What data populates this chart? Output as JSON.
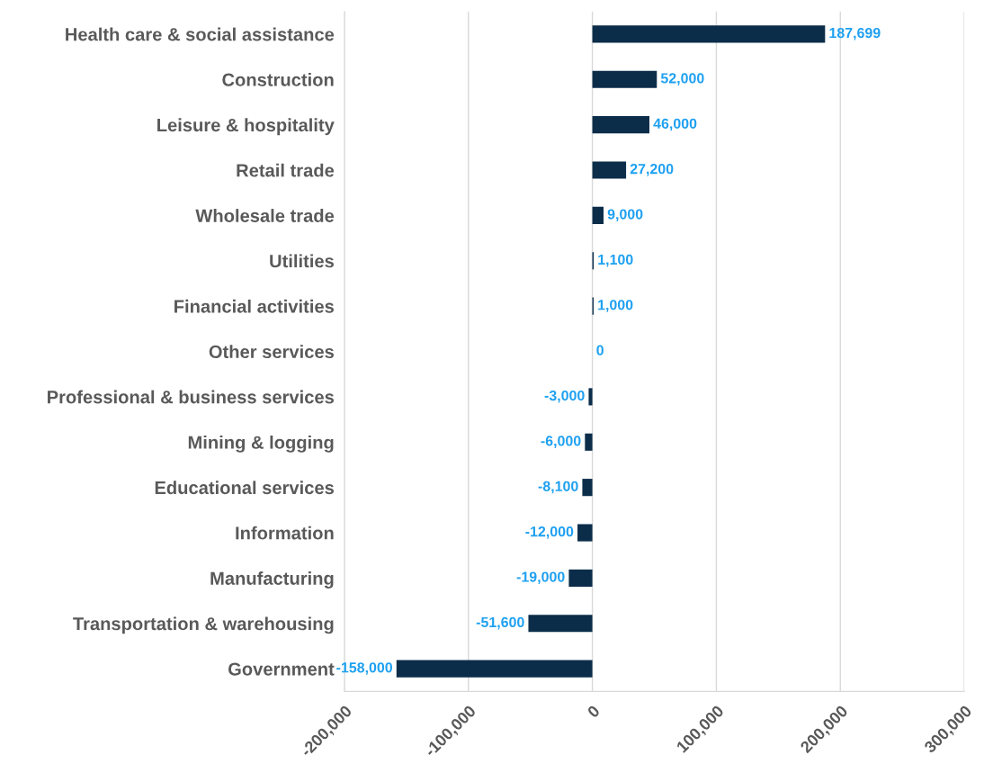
{
  "chart_data": {
    "type": "bar",
    "orientation": "horizontal",
    "categories": [
      "Health care & social assistance",
      "Construction",
      "Leisure & hospitality",
      "Retail trade",
      "Wholesale trade",
      "Utilities",
      "Financial activities",
      "Other services",
      "Professional & business services",
      "Mining & logging",
      "Educational services",
      "Information",
      "Manufacturing",
      "Transportation & warehousing",
      "Government"
    ],
    "values": [
      187699,
      52000,
      46000,
      27200,
      9000,
      1100,
      1000,
      0,
      -3000,
      -6000,
      -8100,
      -12000,
      -19000,
      -51600,
      -158000
    ],
    "value_labels": [
      "187,699",
      "52,000",
      "46,000",
      "27,200",
      "9,000",
      "1,100",
      "1,000",
      "0",
      "-3,000",
      "-6,000",
      "-8,100",
      "-12,000",
      "-19,000",
      "-51,600",
      "-158,000"
    ],
    "color": "#0b2d4a",
    "xlim": [
      -200000,
      300000
    ],
    "xticks": [
      {
        "value": -200000,
        "label": "-200,000"
      },
      {
        "value": -100000,
        "label": "-100,000"
      },
      0,
      {
        "value": 100000,
        "label": "100,000"
      },
      {
        "value": 200000,
        "label": "200,000"
      },
      {
        "value": 300000,
        "label": "300,000"
      }
    ],
    "grid": "x"
  }
}
